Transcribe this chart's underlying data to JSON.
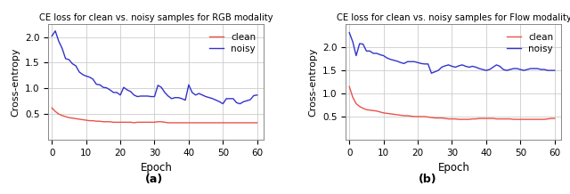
{
  "title_rgb": "CE loss for clean vs. noisy samples for RGB modality",
  "title_flow": "CE loss for clean vs. noisy samples for Flow modality",
  "xlabel": "Epoch",
  "ylabel": "Cross-entropy",
  "label_a": "(a)",
  "label_b": "(b)",
  "xlim": [
    -1,
    62
  ],
  "ylim_rgb": [
    0.0,
    2.25
  ],
  "ylim_flow": [
    0.0,
    2.5
  ],
  "yticks_rgb": [
    0.5,
    1.0,
    1.5,
    2.0
  ],
  "yticks_flow": [
    0.5,
    1.0,
    1.5,
    2.0
  ],
  "xticks": [
    0,
    10,
    20,
    30,
    40,
    50,
    60
  ],
  "clean_color": "#e8534a",
  "noisy_color": "#3333cc",
  "linewidth": 1.0,
  "rgb_clean": [
    0.62,
    0.55,
    0.5,
    0.47,
    0.45,
    0.43,
    0.42,
    0.41,
    0.4,
    0.39,
    0.38,
    0.37,
    0.37,
    0.36,
    0.36,
    0.35,
    0.35,
    0.35,
    0.34,
    0.34,
    0.34,
    0.34,
    0.34,
    0.34,
    0.33,
    0.34,
    0.34,
    0.34,
    0.34,
    0.34,
    0.34,
    0.35,
    0.35,
    0.34,
    0.33,
    0.33,
    0.33,
    0.33,
    0.33,
    0.33,
    0.33,
    0.33,
    0.33,
    0.33,
    0.33,
    0.33,
    0.33,
    0.33,
    0.33,
    0.33,
    0.33,
    0.33,
    0.33,
    0.33,
    0.33,
    0.33,
    0.33,
    0.33,
    0.33,
    0.33,
    0.33
  ],
  "rgb_noisy": [
    2.02,
    2.12,
    1.92,
    1.78,
    1.58,
    1.56,
    1.48,
    1.44,
    1.32,
    1.27,
    1.24,
    1.22,
    1.18,
    1.08,
    1.07,
    1.02,
    1.01,
    0.97,
    0.92,
    0.92,
    0.87,
    1.02,
    0.97,
    0.94,
    0.87,
    0.84,
    0.85,
    0.85,
    0.85,
    0.84,
    0.84,
    1.06,
    1.02,
    0.92,
    0.85,
    0.8,
    0.82,
    0.82,
    0.8,
    0.77,
    1.07,
    0.92,
    0.87,
    0.9,
    0.87,
    0.84,
    0.82,
    0.8,
    0.77,
    0.74,
    0.7,
    0.8,
    0.8,
    0.8,
    0.72,
    0.7,
    0.74,
    0.76,
    0.78,
    0.86,
    0.87
  ],
  "flow_clean": [
    1.15,
    0.92,
    0.78,
    0.72,
    0.68,
    0.65,
    0.64,
    0.63,
    0.62,
    0.6,
    0.58,
    0.57,
    0.56,
    0.55,
    0.54,
    0.53,
    0.52,
    0.52,
    0.51,
    0.5,
    0.5,
    0.5,
    0.5,
    0.49,
    0.48,
    0.47,
    0.47,
    0.47,
    0.46,
    0.45,
    0.45,
    0.45,
    0.44,
    0.44,
    0.44,
    0.44,
    0.45,
    0.45,
    0.46,
    0.46,
    0.46,
    0.46,
    0.46,
    0.45,
    0.45,
    0.45,
    0.45,
    0.45,
    0.44,
    0.44,
    0.44,
    0.44,
    0.44,
    0.44,
    0.44,
    0.44,
    0.44,
    0.44,
    0.45,
    0.46,
    0.46
  ],
  "flow_noisy": [
    2.32,
    2.12,
    1.82,
    2.08,
    2.07,
    1.92,
    1.92,
    1.87,
    1.87,
    1.84,
    1.82,
    1.77,
    1.74,
    1.72,
    1.7,
    1.67,
    1.65,
    1.69,
    1.69,
    1.69,
    1.67,
    1.65,
    1.64,
    1.64,
    1.44,
    1.47,
    1.5,
    1.57,
    1.6,
    1.62,
    1.59,
    1.57,
    1.6,
    1.62,
    1.59,
    1.57,
    1.59,
    1.57,
    1.54,
    1.52,
    1.5,
    1.52,
    1.57,
    1.62,
    1.59,
    1.52,
    1.5,
    1.52,
    1.54,
    1.54,
    1.52,
    1.5,
    1.52,
    1.54,
    1.54,
    1.54,
    1.52,
    1.52,
    1.5,
    1.5,
    1.5
  ]
}
